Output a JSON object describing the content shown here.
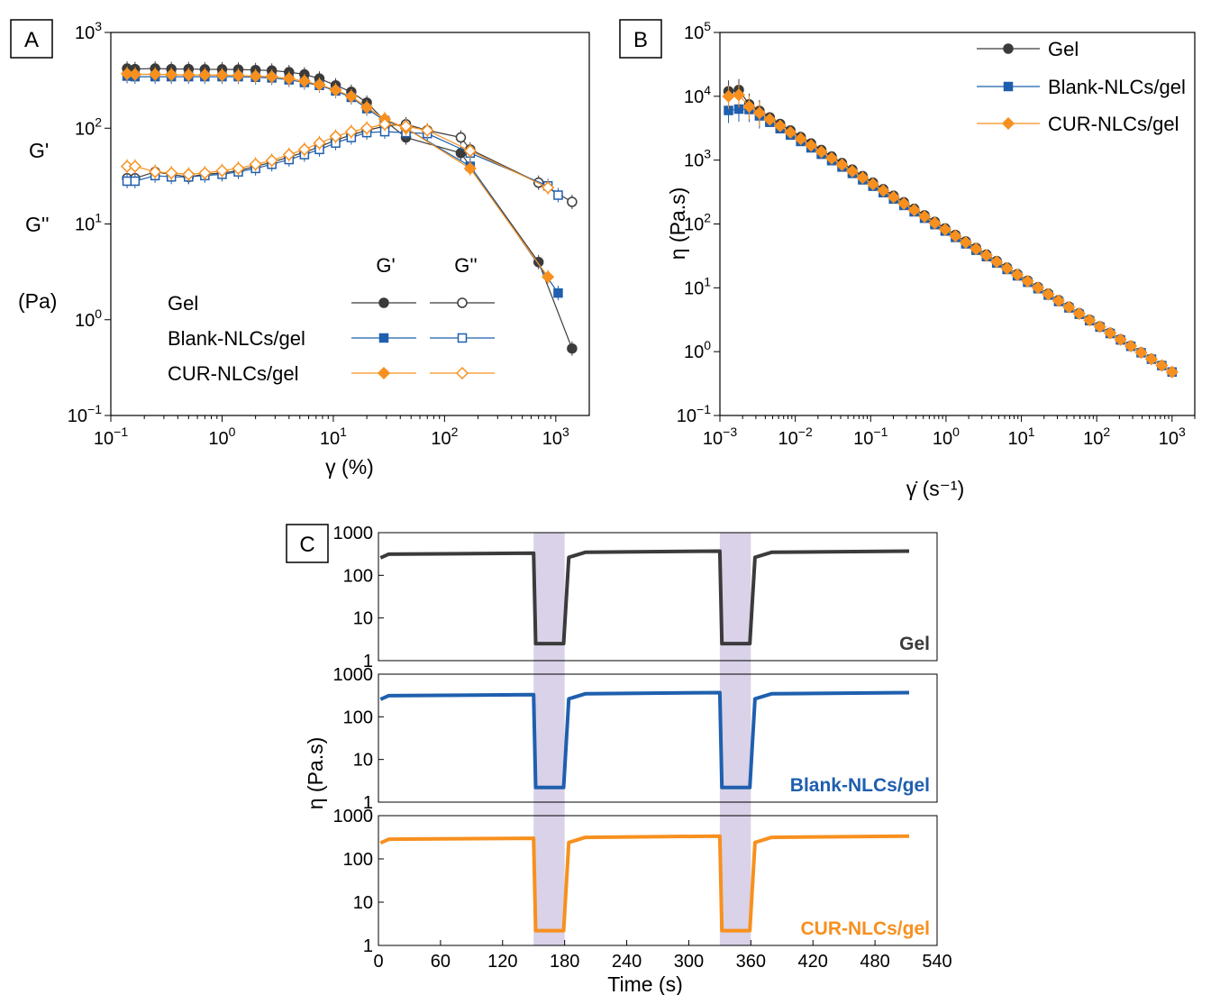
{
  "colors": {
    "gel": "#3b3b3b",
    "blank": "#1f5fae",
    "cur": "#f7901e",
    "shear_band": "#d9d2e8"
  },
  "chart_data": [
    {
      "panel": "A",
      "type": "scatter",
      "xscale": "log",
      "yscale": "log",
      "xlim": [
        0.1,
        2000
      ],
      "ylim": [
        0.1,
        1000
      ],
      "xlabel": "γ (%)",
      "ylabel_lines": [
        "G'",
        "G''",
        "(Pa)"
      ],
      "x_ticks": [
        {
          "v": 0.1,
          "b": "10",
          "e": "−1"
        },
        {
          "v": 1,
          "b": "10",
          "e": "0"
        },
        {
          "v": 10,
          "b": "10",
          "e": "1"
        },
        {
          "v": 100,
          "b": "10",
          "e": "2"
        },
        {
          "v": 1000,
          "b": "10",
          "e": "3"
        }
      ],
      "y_ticks": [
        {
          "v": 0.1,
          "b": "10",
          "e": "−1"
        },
        {
          "v": 1,
          "b": "10",
          "e": "0"
        },
        {
          "v": 10,
          "b": "10",
          "e": "1"
        },
        {
          "v": 100,
          "b": "10",
          "e": "2"
        },
        {
          "v": 1000,
          "b": "10",
          "e": "3"
        }
      ],
      "legend_header": [
        "G'",
        "G''"
      ],
      "x": [
        0.14,
        0.165,
        0.25,
        0.35,
        0.5,
        0.7,
        1.0,
        1.4,
        2.0,
        2.8,
        4.0,
        5.5,
        7.5,
        10.5,
        14.5,
        20,
        29,
        45,
        70,
        140,
        170,
        700,
        850,
        1050,
        1400
      ],
      "series": [
        {
          "name": "Gel",
          "color_key": "gel",
          "marker": "circle",
          "G_prime": [
            420,
            415,
            420,
            415,
            415,
            412,
            412,
            410,
            405,
            400,
            385,
            365,
            330,
            280,
            240,
            185,
            120,
            80,
            null,
            55,
            null,
            4.0,
            null,
            null,
            0.5
          ],
          "G_double": [
            30,
            30,
            35,
            33,
            31,
            33,
            34,
            36,
            40,
            44,
            50,
            56,
            64,
            75,
            85,
            95,
            105,
            110,
            95,
            80,
            60,
            27,
            null,
            null,
            17
          ]
        },
        {
          "name": "Blank-NLCs/gel",
          "color_key": "blank",
          "marker": "square",
          "G_prime": [
            350,
            345,
            345,
            345,
            345,
            345,
            345,
            345,
            340,
            335,
            320,
            300,
            280,
            245,
            210,
            160,
            120,
            100,
            null,
            null,
            40,
            null,
            null,
            1.9,
            null
          ],
          "G_double": [
            28,
            28,
            32,
            31,
            31,
            32,
            33,
            35,
            38,
            42,
            47,
            53,
            60,
            70,
            80,
            90,
            92,
            90,
            88,
            null,
            55,
            null,
            25,
            20,
            null
          ]
        },
        {
          "name": "CUR-NLCs/gel",
          "color_key": "cur",
          "marker": "diamond",
          "G_prime": [
            370,
            365,
            365,
            362,
            360,
            360,
            358,
            355,
            350,
            345,
            330,
            310,
            285,
            250,
            215,
            165,
            125,
            100,
            null,
            null,
            38,
            null,
            2.8,
            null,
            null
          ],
          "G_double": [
            40,
            40,
            35,
            34,
            33,
            34,
            36,
            38,
            42,
            46,
            53,
            60,
            70,
            82,
            92,
            100,
            110,
            105,
            95,
            null,
            58,
            null,
            24,
            null,
            null
          ]
        }
      ]
    },
    {
      "panel": "B",
      "type": "scatter",
      "xscale": "log",
      "yscale": "log",
      "xlim": [
        0.001,
        2000
      ],
      "ylim": [
        0.1,
        100000
      ],
      "xlabel": "γ̇ (s⁻¹)",
      "ylabel": "η (Pa.s)",
      "x_ticks": [
        {
          "v": 0.001,
          "b": "10",
          "e": "−3"
        },
        {
          "v": 0.01,
          "b": "10",
          "e": "−2"
        },
        {
          "v": 0.1,
          "b": "10",
          "e": "−1"
        },
        {
          "v": 1,
          "b": "10",
          "e": "0"
        },
        {
          "v": 10,
          "b": "10",
          "e": "1"
        },
        {
          "v": 100,
          "b": "10",
          "e": "2"
        },
        {
          "v": 1000,
          "b": "10",
          "e": "3"
        }
      ],
      "y_ticks": [
        {
          "v": 0.1,
          "b": "10",
          "e": "−1"
        },
        {
          "v": 1,
          "b": "10",
          "e": "0"
        },
        {
          "v": 10,
          "b": "10",
          "e": "1"
        },
        {
          "v": 100,
          "b": "10",
          "e": "2"
        },
        {
          "v": 1000,
          "b": "10",
          "e": "3"
        },
        {
          "v": 10000,
          "b": "10",
          "e": "4"
        },
        {
          "v": 100000,
          "b": "10",
          "e": "5"
        }
      ],
      "series": [
        {
          "name": "Gel",
          "color_key": "gel",
          "marker": "circle",
          "eta_at_0_001": 12000
        },
        {
          "name": "Blank-NLCs/gel",
          "color_key": "blank",
          "marker": "square",
          "eta_at_0_001": 6000
        },
        {
          "name": "CUR-NLCs/gel",
          "color_key": "cur",
          "marker": "diamond",
          "eta_at_0_001": 10000
        }
      ],
      "eta_at_1000": 0.48
    },
    {
      "panel": "C",
      "type": "line",
      "yscale": "log",
      "xlim": [
        0,
        540
      ],
      "ylim": [
        1,
        1000
      ],
      "xlabel": "Time (s)",
      "ylabel": "η (Pa.s)",
      "x_ticks": [
        0,
        60,
        120,
        180,
        240,
        300,
        360,
        420,
        480,
        540
      ],
      "y_ticks": [
        1,
        10,
        100,
        1000
      ],
      "shear_bands": [
        [
          150,
          180
        ],
        [
          330,
          360
        ]
      ],
      "series": [
        {
          "name": "Gel",
          "color_key": "gel",
          "rest": 330,
          "sheared": 2.5
        },
        {
          "name": "Blank-NLCs/gel",
          "color_key": "blank",
          "rest": 330,
          "sheared": 2.2
        },
        {
          "name": "CUR-NLCs/gel",
          "color_key": "cur",
          "rest": 300,
          "sheared": 2.2
        }
      ]
    }
  ]
}
